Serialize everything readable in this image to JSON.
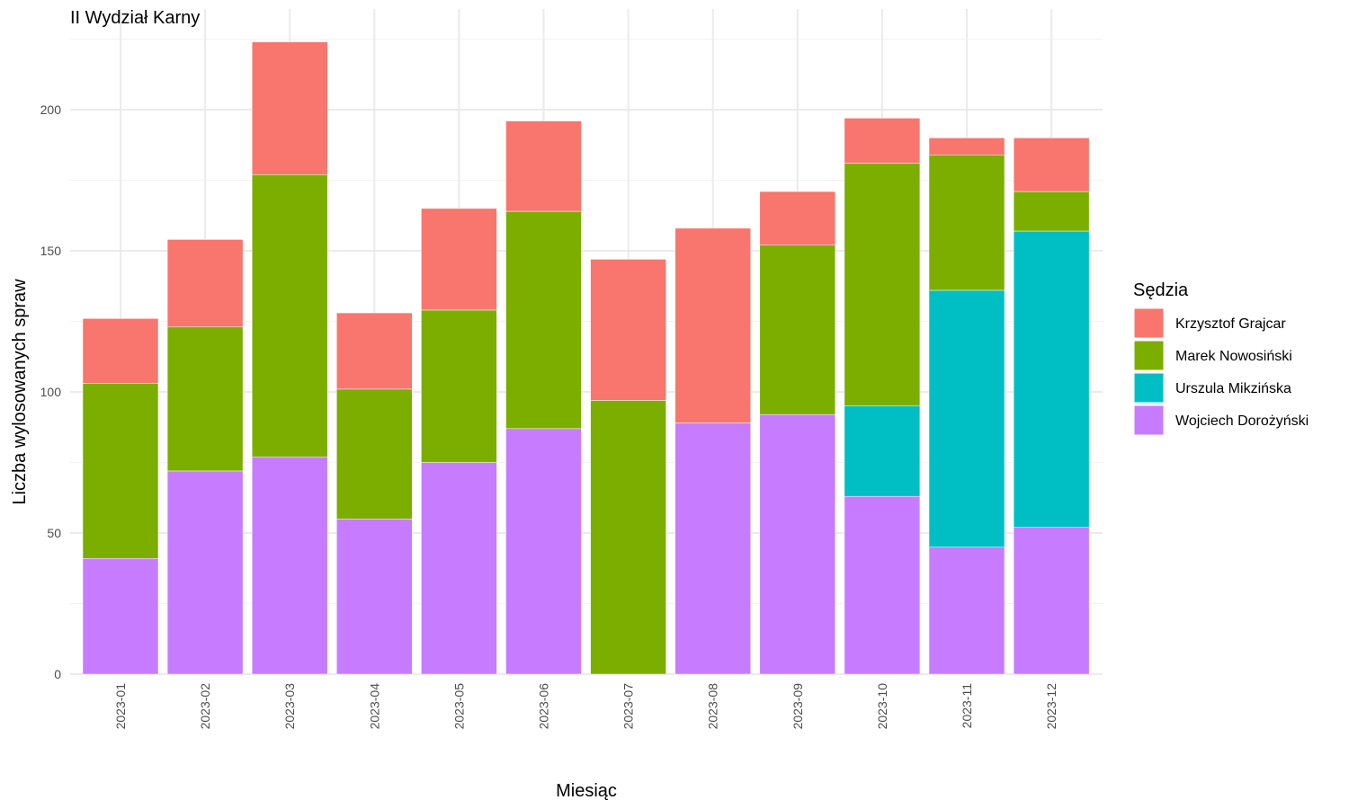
{
  "chart_data": {
    "type": "bar",
    "stacked": true,
    "title": "II Wydział Karny",
    "xlabel": "Miesiąc",
    "ylabel": "Liczba wylosowanych spraw",
    "ylim": [
      0,
      224
    ],
    "yticks": [
      0,
      50,
      100,
      150,
      200
    ],
    "grid": true,
    "legend_title": "Sędzia",
    "legend_position": "right",
    "categories": [
      "2023-01",
      "2023-02",
      "2023-03",
      "2023-04",
      "2023-05",
      "2023-06",
      "2023-07",
      "2023-08",
      "2023-09",
      "2023-10",
      "2023-11",
      "2023-12"
    ],
    "series": [
      {
        "name": "Wojciech Dorożyński",
        "color": "#C77CFF",
        "values": [
          41,
          72,
          77,
          55,
          75,
          87,
          0,
          89,
          92,
          63,
          45,
          52
        ]
      },
      {
        "name": "Urszula Mikzińska",
        "color": "#00BFC4",
        "values": [
          0,
          0,
          0,
          0,
          0,
          0,
          0,
          0,
          0,
          32,
          91,
          105
        ]
      },
      {
        "name": "Marek Nowosiński",
        "color": "#7CAE00",
        "values": [
          62,
          51,
          100,
          46,
          54,
          77,
          97,
          0,
          60,
          86,
          48,
          14
        ]
      },
      {
        "name": "Krzysztof Grajcar",
        "color": "#F8766D",
        "values": [
          23,
          31,
          47,
          27,
          36,
          32,
          50,
          69,
          19,
          16,
          6,
          19
        ]
      }
    ],
    "legend_order": [
      "Krzysztof Grajcar",
      "Marek Nowosiński",
      "Urszula Mikzińska",
      "Wojciech Dorożyński"
    ]
  }
}
